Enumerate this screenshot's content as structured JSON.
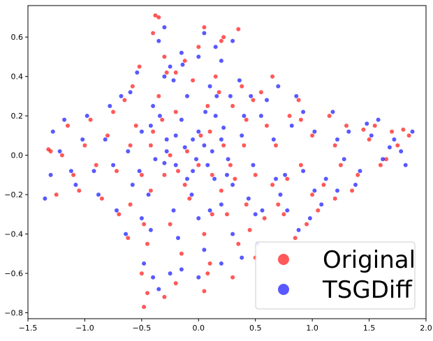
{
  "chart_data": {
    "type": "scatter",
    "xlim": [
      -1.5,
      2.0
    ],
    "ylim": [
      -0.83,
      0.76
    ],
    "x_ticks": [
      -1.5,
      -1.0,
      -0.5,
      0.0,
      0.5,
      1.0,
      1.5,
      2.0
    ],
    "x_tick_labels": [
      "−1.5",
      "−1.0",
      "−0.5",
      "0.0",
      "0.5",
      "1.0",
      "1.5",
      "2.0"
    ],
    "y_ticks": [
      -0.8,
      -0.6,
      -0.4,
      -0.2,
      0.0,
      0.2,
      0.4,
      0.6
    ],
    "y_tick_labels": [
      "−0.8",
      "−0.6",
      "−0.4",
      "−0.2",
      "0.0",
      "0.2",
      "0.4",
      "0.6"
    ],
    "grid": false,
    "legend_position": "lower-right",
    "series": [
      {
        "name": "Original",
        "color": "#ff0000",
        "alpha": 0.65,
        "points": [
          [
            -0.55,
            0.15
          ],
          [
            -0.42,
            0.05
          ],
          [
            -0.3,
            -0.1
          ],
          [
            -0.2,
            0.22
          ],
          [
            -0.1,
            0.02
          ],
          [
            0.0,
            -0.05
          ],
          [
            0.1,
            0.12
          ],
          [
            0.2,
            -0.18
          ],
          [
            -0.6,
            -0.25
          ],
          [
            -0.35,
            0.3
          ],
          [
            -0.05,
            0.38
          ],
          [
            0.15,
            0.4
          ],
          [
            0.3,
            0.25
          ],
          [
            0.4,
            0.05
          ],
          [
            0.5,
            -0.1
          ],
          [
            0.6,
            0.15
          ],
          [
            -0.25,
            -0.35
          ],
          [
            0.05,
            -0.4
          ],
          [
            0.25,
            -0.3
          ],
          [
            -0.45,
            -0.45
          ],
          [
            -0.15,
            -0.5
          ],
          [
            0.1,
            -0.55
          ],
          [
            0.35,
            -0.45
          ],
          [
            -0.3,
            0.5
          ],
          [
            0.0,
            0.55
          ],
          [
            0.2,
            0.58
          ],
          [
            -0.4,
            0.62
          ],
          [
            -0.35,
            0.7
          ],
          [
            -0.38,
            0.71
          ],
          [
            0.05,
            0.65
          ],
          [
            0.35,
            0.64
          ],
          [
            0.22,
            0.6
          ],
          [
            -0.45,
            -0.7
          ],
          [
            -0.48,
            -0.77
          ],
          [
            -0.3,
            -0.72
          ],
          [
            -0.5,
            -0.6
          ],
          [
            -0.2,
            -0.65
          ],
          [
            0.05,
            -0.69
          ],
          [
            0.08,
            -0.6
          ],
          [
            0.3,
            -0.62
          ],
          [
            0.5,
            -0.52
          ],
          [
            0.45,
            -0.38
          ],
          [
            0.55,
            0.32
          ],
          [
            0.65,
            0.4
          ],
          [
            0.7,
            -0.25
          ],
          [
            0.8,
            0.2
          ],
          [
            0.9,
            -0.05
          ],
          [
            1.0,
            0.1
          ],
          [
            1.1,
            -0.15
          ],
          [
            1.2,
            0.05
          ],
          [
            1.3,
            0.15
          ],
          [
            1.4,
            -0.1
          ],
          [
            1.5,
            0.08
          ],
          [
            1.6,
            -0.05
          ],
          [
            1.7,
            0.12
          ],
          [
            1.75,
            0.05
          ],
          [
            1.8,
            0.13
          ],
          [
            1.85,
            0.1
          ],
          [
            1.55,
            0.15
          ],
          [
            1.45,
            0.13
          ],
          [
            1.65,
            -0.02
          ],
          [
            1.35,
            -0.18
          ],
          [
            1.2,
            -0.22
          ],
          [
            1.05,
            -0.28
          ],
          [
            0.95,
            -0.35
          ],
          [
            0.85,
            -0.42
          ],
          [
            0.75,
            -0.3
          ],
          [
            0.65,
            -0.15
          ],
          [
            1.15,
            0.2
          ],
          [
            1.25,
            -0.05
          ],
          [
            0.9,
            0.18
          ],
          [
            1.0,
            -0.2
          ],
          [
            -0.8,
            0.1
          ],
          [
            -0.9,
            -0.05
          ],
          [
            -1.0,
            0.05
          ],
          [
            -1.1,
            -0.1
          ],
          [
            -1.2,
            0.0
          ],
          [
            -1.3,
            0.02
          ],
          [
            -1.32,
            0.03
          ],
          [
            -1.25,
            -0.2
          ],
          [
            -1.15,
            0.15
          ],
          [
            -1.05,
            -0.18
          ],
          [
            -0.95,
            0.18
          ],
          [
            -0.85,
            -0.22
          ],
          [
            -0.75,
            0.22
          ],
          [
            -0.7,
            -0.3
          ],
          [
            -0.65,
            0.28
          ],
          [
            -0.72,
            -0.08
          ],
          [
            -0.6,
            0.05
          ],
          [
            -0.5,
            -0.1
          ],
          [
            -0.4,
            0.12
          ],
          [
            -0.25,
            0.0
          ],
          [
            -0.12,
            -0.15
          ],
          [
            0.08,
            0.25
          ],
          [
            0.22,
            0.05
          ],
          [
            0.32,
            -0.12
          ],
          [
            -0.58,
            0.35
          ],
          [
            -0.2,
            0.42
          ],
          [
            0.12,
            -0.3
          ],
          [
            0.42,
            0.18
          ],
          [
            -0.48,
            -0.35
          ],
          [
            0.18,
            0.32
          ],
          [
            -0.08,
            -0.22
          ],
          [
            0.28,
            -0.05
          ],
          [
            -0.32,
            0.18
          ],
          [
            -0.18,
            -0.08
          ],
          [
            0.02,
            0.1
          ],
          [
            -0.42,
            -0.18
          ],
          [
            0.12,
            -0.1
          ],
          [
            -0.28,
            0.42
          ],
          [
            0.38,
            0.35
          ],
          [
            0.48,
            0.28
          ],
          [
            0.58,
            -0.32
          ],
          [
            0.68,
            0.05
          ],
          [
            0.78,
            -0.12
          ],
          [
            0.88,
            0.28
          ],
          [
            -0.62,
            -0.42
          ],
          [
            -0.52,
            0.45
          ],
          [
            -0.12,
            0.48
          ],
          [
            0.42,
            -0.25
          ]
        ]
      },
      {
        "name": "TSGDiff",
        "color": "#0000ff",
        "alpha": 0.65,
        "points": [
          [
            -0.5,
            0.12
          ],
          [
            -0.38,
            -0.02
          ],
          [
            -0.28,
            0.08
          ],
          [
            -0.15,
            0.18
          ],
          [
            -0.05,
            -0.08
          ],
          [
            0.05,
            0.05
          ],
          [
            0.15,
            0.2
          ],
          [
            0.25,
            -0.1
          ],
          [
            -0.58,
            -0.15
          ],
          [
            -0.4,
            0.25
          ],
          [
            -0.1,
            0.3
          ],
          [
            0.1,
            0.35
          ],
          [
            0.28,
            0.3
          ],
          [
            0.38,
            0.1
          ],
          [
            0.48,
            -0.05
          ],
          [
            0.55,
            0.2
          ],
          [
            -0.22,
            -0.28
          ],
          [
            0.0,
            -0.32
          ],
          [
            0.2,
            -0.25
          ],
          [
            -0.42,
            -0.38
          ],
          [
            -0.18,
            -0.42
          ],
          [
            0.05,
            -0.48
          ],
          [
            0.3,
            -0.4
          ],
          [
            -0.25,
            0.45
          ],
          [
            0.0,
            0.5
          ],
          [
            0.15,
            0.55
          ],
          [
            -0.35,
            0.58
          ],
          [
            -0.3,
            0.65
          ],
          [
            0.05,
            0.62
          ],
          [
            0.3,
            0.58
          ],
          [
            0.2,
            0.48
          ],
          [
            -0.15,
            0.52
          ],
          [
            -0.4,
            -0.62
          ],
          [
            -0.35,
            -0.68
          ],
          [
            -0.25,
            -0.6
          ],
          [
            -0.48,
            -0.55
          ],
          [
            -0.15,
            -0.58
          ],
          [
            0.0,
            -0.62
          ],
          [
            0.2,
            -0.55
          ],
          [
            0.38,
            -0.52
          ],
          [
            0.52,
            -0.45
          ],
          [
            0.5,
            -0.3
          ],
          [
            0.6,
            0.28
          ],
          [
            0.7,
            0.35
          ],
          [
            0.72,
            -0.2
          ],
          [
            0.82,
            0.15
          ],
          [
            0.92,
            -0.08
          ],
          [
            1.02,
            0.12
          ],
          [
            1.12,
            -0.12
          ],
          [
            1.22,
            0.08
          ],
          [
            1.32,
            0.12
          ],
          [
            1.42,
            -0.08
          ],
          [
            1.52,
            0.1
          ],
          [
            1.62,
            -0.02
          ],
          [
            1.72,
            0.08
          ],
          [
            1.78,
            0.02
          ],
          [
            1.88,
            0.12
          ],
          [
            1.82,
            -0.05
          ],
          [
            1.58,
            0.18
          ],
          [
            1.48,
            0.16
          ],
          [
            1.68,
            0.04
          ],
          [
            1.38,
            -0.15
          ],
          [
            1.22,
            -0.18
          ],
          [
            1.08,
            -0.25
          ],
          [
            0.98,
            -0.32
          ],
          [
            0.88,
            -0.38
          ],
          [
            0.78,
            -0.28
          ],
          [
            0.68,
            -0.12
          ],
          [
            1.18,
            0.22
          ],
          [
            1.28,
            -0.02
          ],
          [
            0.92,
            0.22
          ],
          [
            1.02,
            -0.18
          ],
          [
            -0.82,
            0.08
          ],
          [
            -0.92,
            -0.08
          ],
          [
            -1.02,
            0.08
          ],
          [
            -1.12,
            -0.08
          ],
          [
            -1.22,
            0.02
          ],
          [
            -1.28,
            0.12
          ],
          [
            -1.35,
            -0.22
          ],
          [
            -1.3,
            -0.1
          ],
          [
            -1.18,
            0.18
          ],
          [
            -1.08,
            -0.15
          ],
          [
            -0.98,
            0.2
          ],
          [
            -0.88,
            -0.2
          ],
          [
            -0.78,
            0.25
          ],
          [
            -0.72,
            -0.28
          ],
          [
            -0.68,
            0.3
          ],
          [
            -0.75,
            -0.05
          ],
          [
            -0.62,
            0.02
          ],
          [
            -0.52,
            -0.08
          ],
          [
            -0.42,
            0.15
          ],
          [
            -0.28,
            0.02
          ],
          [
            -0.1,
            -0.12
          ],
          [
            0.06,
            0.22
          ],
          [
            0.2,
            0.08
          ],
          [
            0.3,
            -0.15
          ],
          [
            -0.6,
            0.32
          ],
          [
            -0.22,
            0.38
          ],
          [
            0.1,
            -0.28
          ],
          [
            0.4,
            0.2
          ],
          [
            -0.5,
            -0.32
          ],
          [
            0.16,
            0.3
          ],
          [
            -0.06,
            -0.2
          ],
          [
            0.26,
            -0.02
          ],
          [
            -0.34,
            0.2
          ],
          [
            -0.2,
            -0.05
          ],
          [
            0.0,
            0.12
          ],
          [
            -0.44,
            -0.2
          ],
          [
            0.14,
            -0.12
          ],
          [
            -0.3,
            0.4
          ],
          [
            0.36,
            0.38
          ],
          [
            0.46,
            0.3
          ],
          [
            0.56,
            -0.28
          ],
          [
            0.66,
            0.08
          ],
          [
            0.76,
            -0.1
          ],
          [
            0.86,
            0.3
          ],
          [
            -0.64,
            -0.4
          ],
          [
            -0.54,
            0.42
          ],
          [
            -0.14,
            0.46
          ],
          [
            0.44,
            -0.22
          ],
          [
            -0.05,
            0.08
          ],
          [
            -0.02,
            -0.02
          ],
          [
            0.08,
            -0.05
          ],
          [
            -0.12,
            0.04
          ],
          [
            -0.2,
            0.1
          ],
          [
            -0.3,
            -0.04
          ],
          [
            0.12,
            0.02
          ],
          [
            0.22,
            0.14
          ]
        ]
      }
    ],
    "legend": [
      {
        "label": "Original",
        "color": "#ff0000"
      },
      {
        "label": "TSGDiff",
        "color": "#0000ff"
      }
    ]
  }
}
